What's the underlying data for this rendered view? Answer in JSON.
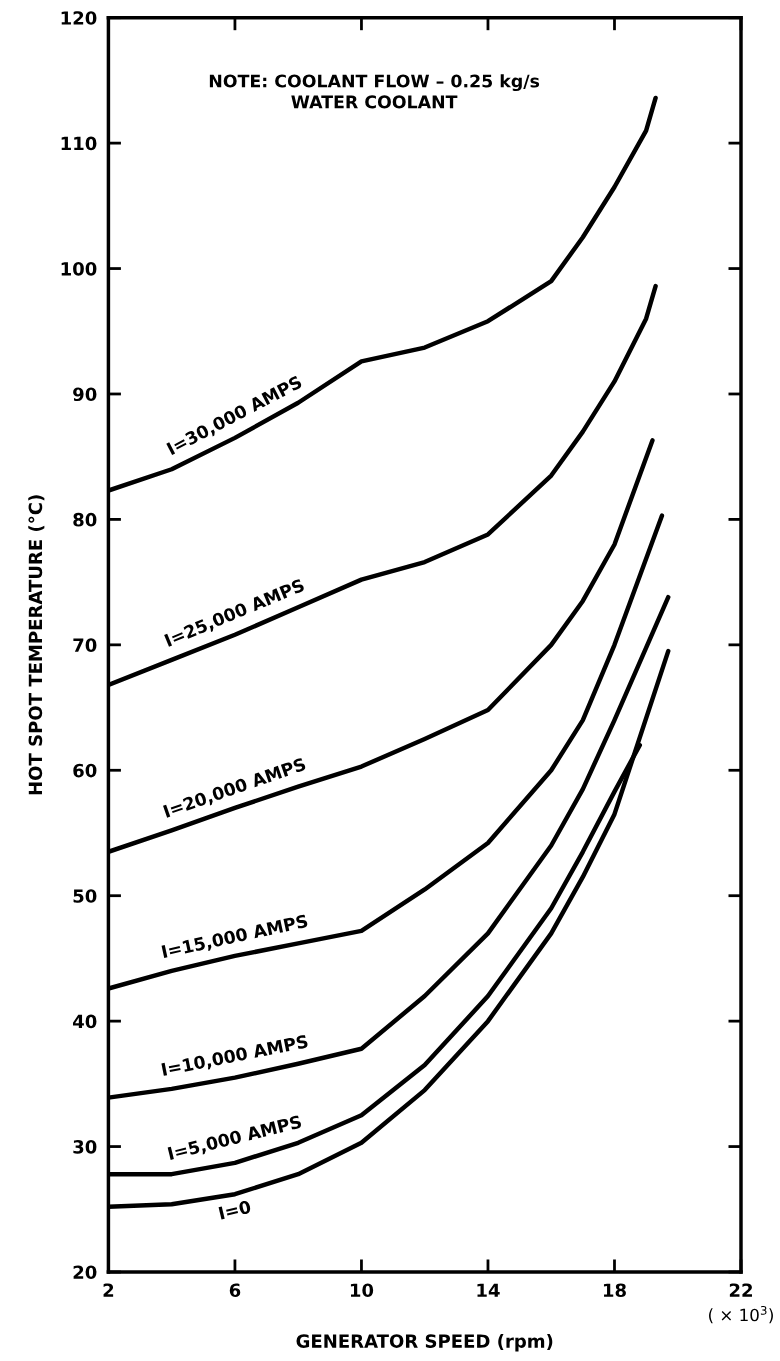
{
  "chart_data": {
    "type": "line",
    "xlabel": "GENERATOR SPEED (rpm)",
    "ylabel": "HOT SPOT TEMPERATURE (°C)",
    "xlim": [
      2,
      22
    ],
    "xticks": [
      2,
      6,
      10,
      14,
      18,
      22
    ],
    "ylim": [
      20,
      120
    ],
    "yticks": [
      20,
      30,
      40,
      50,
      60,
      70,
      80,
      90,
      100,
      110,
      120
    ],
    "grid": false,
    "legend": false,
    "marker": "none",
    "line_style": "solid",
    "annotations": [
      "NOTE: COOLANT FLOW – 0.25 kg/s\nWATER COOLANT",
      "( × 10$^{3}$)"
    ],
    "series": [
      {
        "name": "I=30,000 AMPS",
        "color": "#000000",
        "x": [
          2,
          4,
          6,
          8,
          10,
          12,
          14,
          16,
          17,
          18,
          19,
          19.3
        ],
        "values": [
          82.3,
          84,
          86.5,
          89.3,
          92.6,
          93.7,
          95.8,
          99,
          102.5,
          106.5,
          111,
          113.6
        ]
      },
      {
        "name": "I=25,000 AMPS",
        "color": "#000000",
        "x": [
          2,
          4,
          6,
          8,
          10,
          12,
          14,
          16,
          17,
          18,
          19,
          19.3
        ],
        "values": [
          66.8,
          68.8,
          70.8,
          73,
          75.2,
          76.6,
          78.8,
          83.5,
          87,
          91,
          96,
          98.6
        ]
      },
      {
        "name": "I=20,000 AMPS",
        "color": "#000000",
        "x": [
          2,
          4,
          6,
          8,
          10,
          12,
          14,
          16,
          17,
          18,
          19.2
        ],
        "values": [
          53.5,
          55.2,
          57,
          58.7,
          60.3,
          62.5,
          64.8,
          70,
          73.5,
          78,
          86.3
        ]
      },
      {
        "name": "I=15,000 AMPS",
        "color": "#000000",
        "x": [
          2,
          4,
          6,
          8,
          10,
          12,
          14,
          16,
          17,
          18,
          19.5
        ],
        "values": [
          42.6,
          44,
          45.2,
          46.2,
          47.2,
          50.5,
          54.2,
          60,
          64,
          70,
          80.3
        ]
      },
      {
        "name": "I=10,000 AMPS",
        "color": "#000000",
        "x": [
          2,
          4,
          6,
          8,
          10,
          12,
          14,
          16,
          17,
          18,
          19.7
        ],
        "values": [
          33.9,
          34.6,
          35.5,
          36.6,
          37.8,
          42,
          47,
          54,
          58.5,
          64,
          73.8
        ]
      },
      {
        "name": "I=5,000 AMPS",
        "color": "#000000",
        "x": [
          2,
          4,
          6,
          8,
          10,
          12,
          14,
          16,
          17,
          18,
          18.8
        ],
        "values": [
          27.8,
          27.8,
          28.7,
          30.3,
          32.5,
          36.5,
          42,
          49,
          53.5,
          58.3,
          62
        ]
      },
      {
        "name": "I=0",
        "color": "#000000",
        "x": [
          2,
          4,
          6,
          8,
          10,
          12,
          14,
          16,
          17,
          18,
          19.7
        ],
        "values": [
          25.2,
          25.4,
          26.2,
          27.8,
          30.3,
          34.5,
          40,
          47,
          51.5,
          56.5,
          69.5
        ]
      }
    ]
  }
}
